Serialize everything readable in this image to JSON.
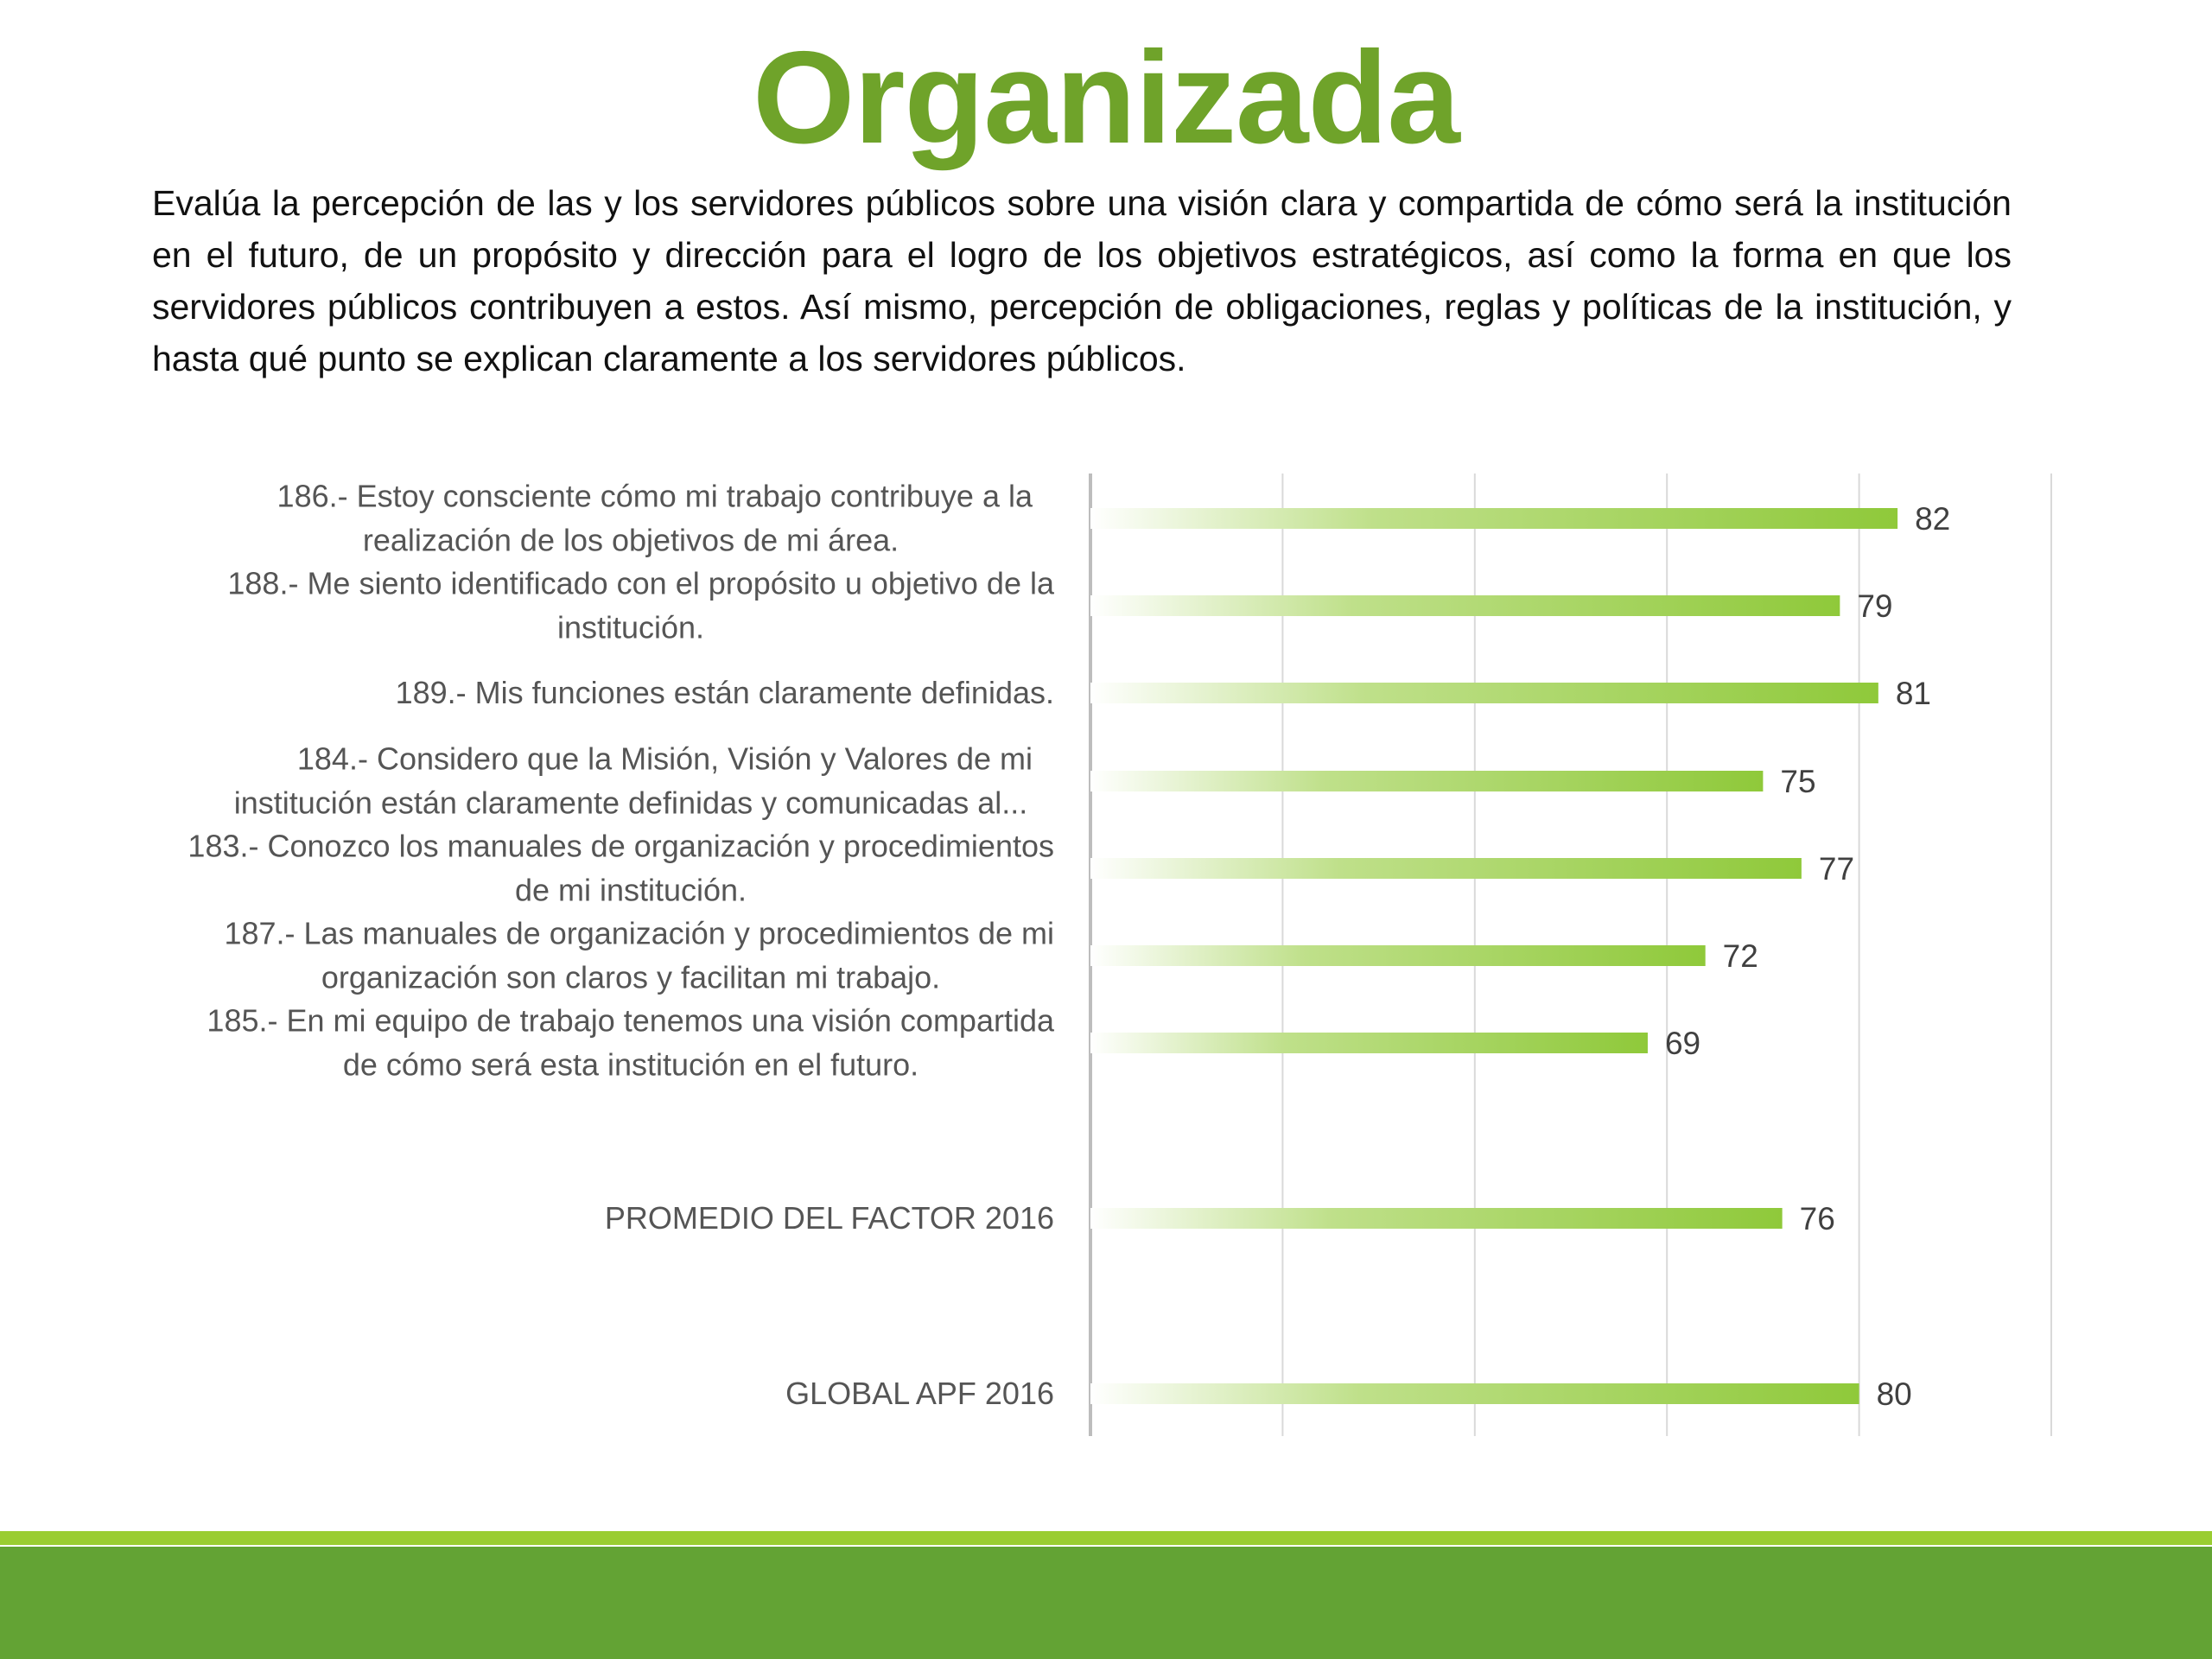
{
  "title": "Organizada",
  "description": "Evalúa la percepción de las y los servidores públicos sobre una visión clara y compartida de cómo será la institución en el futuro, de un propósito y dirección para el logro de los objetivos estratégicos, así como la forma en que los servidores públicos contribuyen a estos. Así mismo, percepción de obligaciones, reglas y políticas de la institución, y hasta qué punto se explican claramente a los servidores públicos.",
  "colors": {
    "title": "#6fa32a",
    "bar_start": "#ffffff",
    "bar_end": "#8fc93a",
    "footer_line": "#9acd32",
    "footer_band": "#63a334"
  },
  "chart_data": {
    "type": "bar",
    "orientation": "horizontal",
    "grid": true,
    "xlim": [
      40,
      90
    ],
    "categories": [
      [
        "186.- Estoy consciente cómo mi trabajo contribuye a la",
        "realización de los objetivos de mi área."
      ],
      [
        "188.- Me siento identificado con el propósito u objetivo de la",
        "institución."
      ],
      [
        "189.- Mis funciones están claramente definidas."
      ],
      [
        "184.- Considero que la Misión, Visión y Valores de mi",
        "institución están claramente definidas y comunicadas al..."
      ],
      [
        "183.- Conozco los manuales de organización y procedimientos",
        "de mi institución."
      ],
      [
        "187.- Las manuales de organización y procedimientos de mi",
        "organización son claros y facilitan mi trabajo."
      ],
      [
        "185.- En mi equipo de trabajo tenemos una visión compartida",
        "de cómo será esta institución en el futuro."
      ],
      [
        "PROMEDIO DEL FACTOR   2016"
      ],
      [
        "GLOBAL APF   2016"
      ]
    ],
    "values": [
      82,
      79,
      81,
      75,
      77,
      72,
      69,
      76,
      80
    ]
  }
}
